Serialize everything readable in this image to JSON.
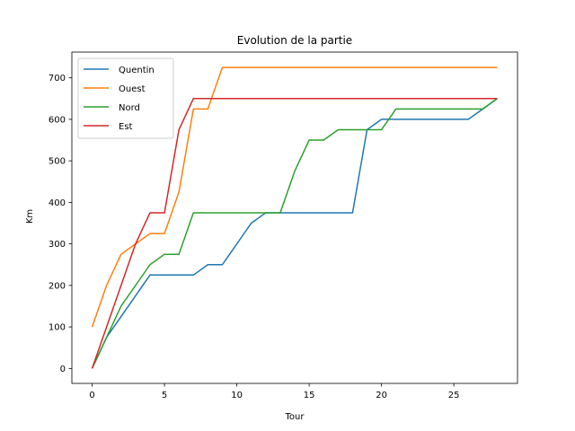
{
  "chart_data": {
    "type": "line",
    "title": "Evolution de la partie",
    "xlabel": "Tour",
    "ylabel": "Km",
    "xlim": [
      -1.4,
      29.4
    ],
    "ylim": [
      -36,
      762
    ],
    "xticks": [
      0,
      5,
      10,
      15,
      20,
      25
    ],
    "yticks": [
      0,
      100,
      200,
      300,
      400,
      500,
      600,
      700
    ],
    "grid": false,
    "legend_position": "top-left",
    "series": [
      {
        "name": "Quentin",
        "color": "#1f77b4",
        "x": [
          0,
          1,
          2,
          3,
          4,
          5,
          6,
          7,
          8,
          9,
          10,
          11,
          12,
          13,
          14,
          15,
          16,
          17,
          18,
          19,
          20,
          21,
          22,
          23,
          24,
          25,
          26,
          27,
          28
        ],
        "y": [
          0,
          75,
          125,
          175,
          225,
          225,
          225,
          225,
          250,
          250,
          300,
          350,
          375,
          375,
          375,
          375,
          375,
          375,
          375,
          575,
          600,
          600,
          600,
          600,
          600,
          600,
          600,
          625,
          650
        ]
      },
      {
        "name": "Ouest",
        "color": "#ff7f0e",
        "x": [
          0,
          1,
          2,
          3,
          4,
          5,
          6,
          7,
          8,
          9,
          10,
          11,
          12,
          13,
          14,
          15,
          16,
          17,
          18,
          19,
          20,
          21,
          22,
          23,
          24,
          25,
          26,
          27,
          28
        ],
        "y": [
          100,
          200,
          275,
          300,
          325,
          325,
          425,
          625,
          625,
          725,
          725,
          725,
          725,
          725,
          725,
          725,
          725,
          725,
          725,
          725,
          725,
          725,
          725,
          725,
          725,
          725,
          725,
          725,
          725
        ]
      },
      {
        "name": "Nord",
        "color": "#2ca02c",
        "x": [
          0,
          1,
          2,
          3,
          4,
          5,
          6,
          7,
          8,
          9,
          10,
          11,
          12,
          13,
          14,
          15,
          16,
          17,
          18,
          19,
          20,
          21,
          22,
          23,
          24,
          25,
          26,
          27,
          28
        ],
        "y": [
          0,
          75,
          150,
          200,
          250,
          275,
          275,
          375,
          375,
          375,
          375,
          375,
          375,
          375,
          475,
          550,
          550,
          575,
          575,
          575,
          575,
          625,
          625,
          625,
          625,
          625,
          625,
          625,
          650
        ]
      },
      {
        "name": "Est",
        "color": "#d62728",
        "x": [
          0,
          1,
          2,
          3,
          4,
          5,
          6,
          7,
          8,
          9,
          10,
          11,
          12,
          13,
          14,
          15,
          16,
          17,
          18,
          19,
          20,
          21,
          22,
          23,
          24,
          25,
          26,
          27,
          28
        ],
        "y": [
          0,
          100,
          200,
          300,
          375,
          375,
          575,
          650,
          650,
          650,
          650,
          650,
          650,
          650,
          650,
          650,
          650,
          650,
          650,
          650,
          650,
          650,
          650,
          650,
          650,
          650,
          650,
          650,
          650
        ]
      }
    ]
  }
}
